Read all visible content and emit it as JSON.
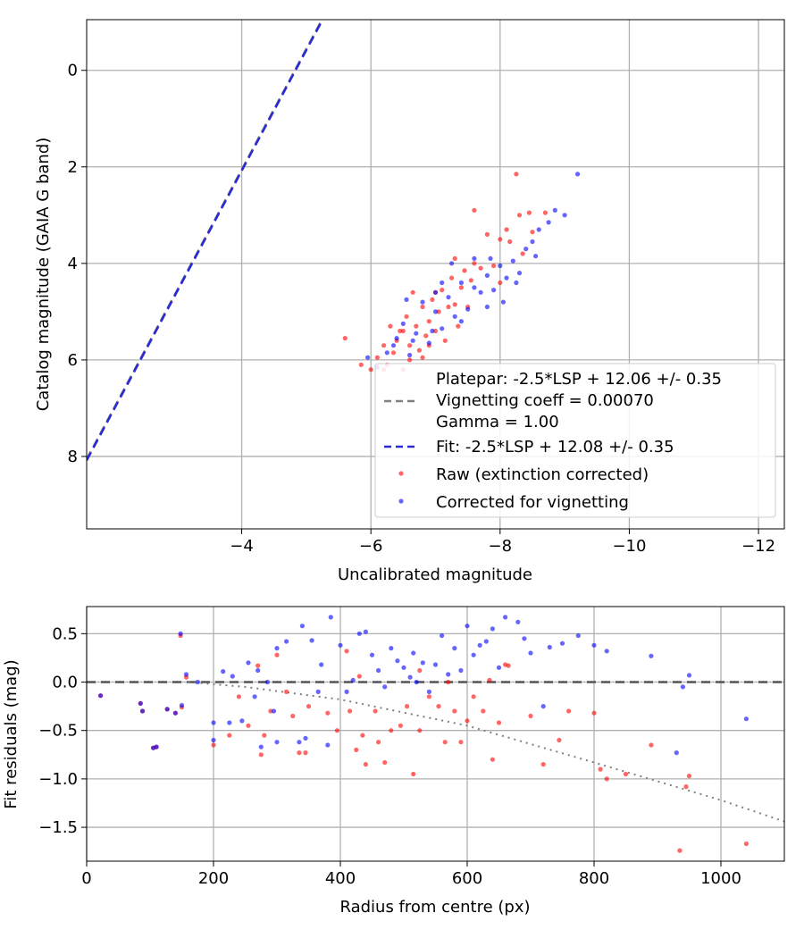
{
  "chart_data": [
    {
      "type": "scatter",
      "title": "",
      "xlabel": "Uncalibrated magnitude",
      "ylabel": "Catalog magnitude (GAIA G band)",
      "xlim": [
        -1.6,
        -12.4
      ],
      "ylim": [
        9.5,
        -1.05
      ],
      "x_ticks": [
        -4,
        -6,
        -8,
        -10,
        -12
      ],
      "x_tick_labels": [
        "−4",
        "−6",
        "−8",
        "−10",
        "−12"
      ],
      "y_ticks": [
        0,
        2,
        4,
        6,
        8
      ],
      "y_tick_labels": [
        "0",
        "2",
        "4",
        "6",
        "8"
      ],
      "grid": true,
      "legend_position": "lower-right",
      "legend": {
        "platepar_text": "Platepar: -2.5*LSP + 12.06 +/- 0.35",
        "vignetting_text": "Vignetting coeff = 0.00070",
        "gamma_text": "Gamma = 1.00",
        "fit_text": "Fit: -2.5*LSP + 12.08 +/- 0.35",
        "raw_text": "Raw (extinction corrected)",
        "corrected_text": "Corrected for vignetting"
      },
      "lines": [
        {
          "name": "Vignetting coeff = 0.00070",
          "style": "dashed",
          "color": "#808080",
          "slope": 2.5,
          "intercept": 12.06
        },
        {
          "name": "Fit: -2.5*LSP + 12.08 +/- 0.35",
          "style": "dashed",
          "color": "#2a2ad6",
          "slope": 2.5,
          "intercept": 12.08
        }
      ],
      "series": [
        {
          "name": "Raw (extinction corrected)",
          "color": "#ff0000",
          "points": [
            [
              -5.6,
              5.55
            ],
            [
              -5.85,
              6.1
            ],
            [
              -6.0,
              6.2
            ],
            [
              -6.1,
              5.95
            ],
            [
              -6.2,
              5.7
            ],
            [
              -6.25,
              6.1
            ],
            [
              -6.3,
              5.3
            ],
            [
              -6.35,
              5.85
            ],
            [
              -6.4,
              5.6
            ],
            [
              -6.45,
              5.4
            ],
            [
              -6.5,
              6.2
            ],
            [
              -6.55,
              5.1
            ],
            [
              -6.6,
              5.7
            ],
            [
              -6.65,
              4.6
            ],
            [
              -6.7,
              5.3
            ],
            [
              -6.75,
              5.8
            ],
            [
              -6.8,
              4.9
            ],
            [
              -6.85,
              5.5
            ],
            [
              -6.9,
              5.2
            ],
            [
              -6.95,
              4.75
            ],
            [
              -7.0,
              5.4
            ],
            [
              -7.05,
              5.0
            ],
            [
              -7.1,
              4.55
            ],
            [
              -7.15,
              5.6
            ],
            [
              -7.2,
              4.9
            ],
            [
              -7.25,
              4.3
            ],
            [
              -7.3,
              4.85
            ],
            [
              -7.35,
              5.3
            ],
            [
              -7.4,
              4.5
            ],
            [
              -7.45,
              4.15
            ],
            [
              -7.5,
              4.9
            ],
            [
              -7.55,
              4.35
            ],
            [
              -7.6,
              2.9
            ],
            [
              -7.7,
              4.1
            ],
            [
              -7.8,
              3.4
            ],
            [
              -7.9,
              4.05
            ],
            [
              -8.0,
              3.5
            ],
            [
              -8.1,
              3.3
            ],
            [
              -8.15,
              3.55
            ],
            [
              -8.25,
              2.15
            ],
            [
              -8.3,
              3.0
            ],
            [
              -8.35,
              3.8
            ],
            [
              -8.45,
              2.95
            ],
            [
              -8.5,
              3.35
            ],
            [
              -8.7,
              2.95
            ],
            [
              -8.0,
              4.4
            ],
            [
              -7.0,
              4.6
            ],
            [
              -6.8,
              5.95
            ],
            [
              -6.5,
              5.4
            ],
            [
              -6.2,
              6.2
            ],
            [
              -6.6,
              6.0
            ],
            [
              -6.9,
              5.7
            ],
            [
              -7.3,
              3.9
            ],
            [
              -7.6,
              4.0
            ]
          ]
        },
        {
          "name": "Corrected for vignetting",
          "color": "#0000ff",
          "points": [
            [
              -5.95,
              5.95
            ],
            [
              -6.1,
              6.15
            ],
            [
              -6.25,
              5.85
            ],
            [
              -6.4,
              5.55
            ],
            [
              -6.5,
              5.25
            ],
            [
              -6.6,
              5.9
            ],
            [
              -6.7,
              5.45
            ],
            [
              -6.8,
              4.8
            ],
            [
              -6.9,
              5.65
            ],
            [
              -7.0,
              5.0
            ],
            [
              -7.1,
              5.35
            ],
            [
              -7.2,
              4.7
            ],
            [
              -7.3,
              5.1
            ],
            [
              -7.4,
              4.4
            ],
            [
              -7.5,
              4.95
            ],
            [
              -7.6,
              4.5
            ],
            [
              -7.7,
              4.6
            ],
            [
              -7.8,
              4.25
            ],
            [
              -7.9,
              4.55
            ],
            [
              -8.0,
              4.05
            ],
            [
              -8.05,
              4.8
            ],
            [
              -8.1,
              4.3
            ],
            [
              -8.2,
              3.95
            ],
            [
              -8.3,
              4.2
            ],
            [
              -8.4,
              3.7
            ],
            [
              -8.5,
              3.55
            ],
            [
              -8.6,
              3.3
            ],
            [
              -8.75,
              3.15
            ],
            [
              -8.85,
              2.9
            ],
            [
              -9.0,
              3.0
            ],
            [
              -9.2,
              2.15
            ],
            [
              -7.0,
              4.6
            ],
            [
              -7.4,
              5.2
            ],
            [
              -7.6,
              3.9
            ],
            [
              -7.8,
              4.9
            ],
            [
              -7.1,
              4.4
            ],
            [
              -6.95,
              5.4
            ],
            [
              -6.65,
              5.6
            ],
            [
              -6.35,
              5.7
            ],
            [
              -8.25,
              4.4
            ],
            [
              -7.85,
              3.9
            ],
            [
              -7.25,
              4.0
            ],
            [
              -6.55,
              4.75
            ],
            [
              -8.55,
              3.85
            ]
          ]
        }
      ]
    },
    {
      "type": "scatter",
      "title": "",
      "xlabel": "Radius from centre (px)",
      "ylabel": "Fit residuals (mag)",
      "xlim": [
        0,
        1100
      ],
      "ylim": [
        -1.85,
        0.78
      ],
      "x_ticks": [
        0,
        200,
        400,
        600,
        800,
        1000
      ],
      "x_tick_labels": [
        "0",
        "200",
        "400",
        "600",
        "800",
        "1000"
      ],
      "y_ticks": [
        0.5,
        0.0,
        -0.5,
        -1.0,
        -1.5
      ],
      "y_tick_labels": [
        "0.5",
        "0.0",
        "−0.5",
        "−1.0",
        "−1.5"
      ],
      "grid": true,
      "lines": [
        {
          "name": "zero",
          "style": "dashed",
          "color": "#555555",
          "y": 0.0
        },
        {
          "name": "vignetting",
          "style": "dotted",
          "color": "#808080",
          "points": [
            [
              160,
              0.0
            ],
            [
              250,
              -0.05
            ],
            [
              400,
              -0.18
            ],
            [
              600,
              -0.45
            ],
            [
              800,
              -0.83
            ],
            [
              1000,
              -1.22
            ],
            [
              1100,
              -1.44
            ]
          ]
        }
      ],
      "series": [
        {
          "name": "Raw (extinction corrected)",
          "color": "#ff0000",
          "points": [
            [
              22,
              -0.14
            ],
            [
              85,
              -0.22
            ],
            [
              88,
              -0.3
            ],
            [
              105,
              -0.68
            ],
            [
              110,
              -0.67
            ],
            [
              127,
              -0.28
            ],
            [
              140,
              -0.32
            ],
            [
              148,
              0.48
            ],
            [
              150,
              -0.26
            ],
            [
              157,
              0.05
            ],
            [
              200,
              -0.65
            ],
            [
              225,
              -0.55
            ],
            [
              240,
              -0.15
            ],
            [
              255,
              -0.45
            ],
            [
              275,
              -0.75
            ],
            [
              280,
              -0.55
            ],
            [
              290,
              -0.3
            ],
            [
              315,
              -0.1
            ],
            [
              325,
              -0.35
            ],
            [
              335,
              -0.73
            ],
            [
              345,
              -0.73
            ],
            [
              350,
              -0.25
            ],
            [
              380,
              -0.32
            ],
            [
              395,
              -0.5
            ],
            [
              410,
              0.32
            ],
            [
              415,
              -0.3
            ],
            [
              425,
              -0.7
            ],
            [
              435,
              -0.55
            ],
            [
              440,
              -0.85
            ],
            [
              455,
              -0.3
            ],
            [
              460,
              -0.62
            ],
            [
              470,
              -0.83
            ],
            [
              480,
              -0.5
            ],
            [
              495,
              -0.45
            ],
            [
              505,
              -0.25
            ],
            [
              515,
              -0.95
            ],
            [
              525,
              -0.5
            ],
            [
              540,
              -0.15
            ],
            [
              555,
              -0.25
            ],
            [
              565,
              -0.62
            ],
            [
              570,
              0.0
            ],
            [
              580,
              -0.3
            ],
            [
              590,
              -0.62
            ],
            [
              600,
              -0.4
            ],
            [
              610,
              -0.15
            ],
            [
              625,
              -0.3
            ],
            [
              635,
              0.02
            ],
            [
              640,
              -0.8
            ],
            [
              650,
              -0.42
            ],
            [
              660,
              0.18
            ],
            [
              665,
              0.17
            ],
            [
              700,
              -0.35
            ],
            [
              720,
              -0.85
            ],
            [
              745,
              -0.6
            ],
            [
              760,
              -0.3
            ],
            [
              800,
              -0.32
            ],
            [
              810,
              -0.9
            ],
            [
              820,
              -1.0
            ],
            [
              850,
              -0.95
            ],
            [
              890,
              -0.65
            ],
            [
              935,
              -1.74
            ],
            [
              945,
              -1.08
            ],
            [
              950,
              -0.97
            ],
            [
              1040,
              -1.67
            ],
            [
              300,
              0.28
            ],
            [
              270,
              0.17
            ],
            [
              430,
              0.06
            ],
            [
              525,
              0.12
            ]
          ]
        },
        {
          "name": "Corrected for vignetting",
          "color": "#0000ff",
          "points": [
            [
              22,
              -0.14
            ],
            [
              85,
              -0.22
            ],
            [
              88,
              -0.3
            ],
            [
              105,
              -0.68
            ],
            [
              110,
              -0.67
            ],
            [
              127,
              -0.28
            ],
            [
              140,
              -0.32
            ],
            [
              148,
              0.5
            ],
            [
              150,
              -0.24
            ],
            [
              157,
              0.08
            ],
            [
              175,
              0.0
            ],
            [
              200,
              -0.42
            ],
            [
              200,
              -0.6
            ],
            [
              215,
              0.11
            ],
            [
              225,
              -0.42
            ],
            [
              230,
              0.06
            ],
            [
              245,
              -0.4
            ],
            [
              255,
              0.2
            ],
            [
              265,
              -0.15
            ],
            [
              270,
              0.12
            ],
            [
              275,
              -0.67
            ],
            [
              285,
              0.0
            ],
            [
              295,
              -0.3
            ],
            [
              300,
              0.35
            ],
            [
              315,
              0.42
            ],
            [
              335,
              -0.62
            ],
            [
              340,
              0.58
            ],
            [
              345,
              -0.58
            ],
            [
              355,
              0.43
            ],
            [
              365,
              -0.1
            ],
            [
              370,
              0.18
            ],
            [
              385,
              0.67
            ],
            [
              400,
              0.38
            ],
            [
              410,
              -0.1
            ],
            [
              420,
              0.02
            ],
            [
              430,
              0.5
            ],
            [
              440,
              0.52
            ],
            [
              450,
              0.28
            ],
            [
              460,
              0.12
            ],
            [
              470,
              -0.05
            ],
            [
              480,
              0.35
            ],
            [
              490,
              0.22
            ],
            [
              500,
              0.15
            ],
            [
              510,
              0.05
            ],
            [
              515,
              0.3
            ],
            [
              520,
              0.0
            ],
            [
              530,
              0.2
            ],
            [
              540,
              -0.1
            ],
            [
              550,
              0.18
            ],
            [
              560,
              0.48
            ],
            [
              570,
              0.08
            ],
            [
              580,
              0.35
            ],
            [
              590,
              0.12
            ],
            [
              600,
              0.58
            ],
            [
              610,
              0.28
            ],
            [
              620,
              0.38
            ],
            [
              630,
              0.42
            ],
            [
              640,
              0.55
            ],
            [
              650,
              0.15
            ],
            [
              660,
              0.67
            ],
            [
              680,
              0.62
            ],
            [
              690,
              0.45
            ],
            [
              700,
              0.3
            ],
            [
              720,
              -0.25
            ],
            [
              730,
              0.36
            ],
            [
              750,
              0.4
            ],
            [
              775,
              0.48
            ],
            [
              800,
              0.38
            ],
            [
              820,
              0.32
            ],
            [
              890,
              0.27
            ],
            [
              930,
              -0.73
            ],
            [
              940,
              -0.05
            ],
            [
              950,
              0.07
            ],
            [
              1040,
              -0.38
            ],
            [
              300,
              -0.62
            ],
            [
              380,
              -0.65
            ]
          ]
        }
      ]
    }
  ]
}
